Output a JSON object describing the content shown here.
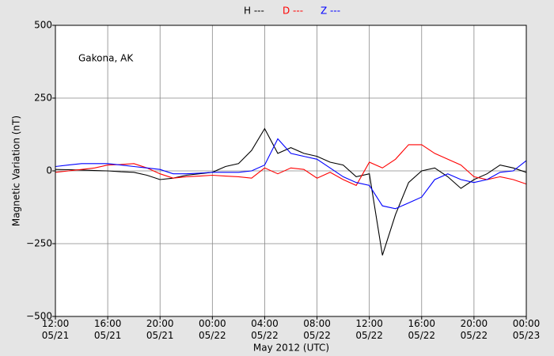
{
  "chart_data": {
    "type": "line",
    "annotation": "Gakona, AK",
    "xlabel": "May 2012 (UTC)",
    "ylabel": "Magnetic Variation (nT)",
    "x": [
      "2012-05-21T12:00",
      "2012-05-21T13:00",
      "2012-05-21T14:00",
      "2012-05-21T15:00",
      "2012-05-21T16:00",
      "2012-05-21T17:00",
      "2012-05-21T18:00",
      "2012-05-21T19:00",
      "2012-05-21T20:00",
      "2012-05-21T21:00",
      "2012-05-21T22:00",
      "2012-05-21T23:00",
      "2012-05-22T00:00",
      "2012-05-22T01:00",
      "2012-05-22T02:00",
      "2012-05-22T03:00",
      "2012-05-22T04:00",
      "2012-05-22T05:00",
      "2012-05-22T06:00",
      "2012-05-22T07:00",
      "2012-05-22T08:00",
      "2012-05-22T09:00",
      "2012-05-22T10:00",
      "2012-05-22T11:00",
      "2012-05-22T12:00",
      "2012-05-22T13:00",
      "2012-05-22T14:00",
      "2012-05-22T15:00",
      "2012-05-22T16:00",
      "2012-05-22T17:00",
      "2012-05-22T18:00",
      "2012-05-22T19:00",
      "2012-05-22T20:00",
      "2012-05-22T21:00",
      "2012-05-22T22:00",
      "2012-05-22T23:00",
      "2012-05-23T00:00"
    ],
    "series": [
      {
        "name": "H ---",
        "color": "#000000",
        "values": [
          5,
          4,
          3,
          1,
          0,
          -3,
          -5,
          -15,
          -30,
          -25,
          -15,
          -10,
          -5,
          15,
          25,
          70,
          145,
          60,
          80,
          60,
          50,
          30,
          20,
          -20,
          -10,
          -290,
          -150,
          -40,
          0,
          10,
          -20,
          -60,
          -30,
          -10,
          20,
          10,
          -5
        ]
      },
      {
        "name": "D ---",
        "color": "#ff0000",
        "values": [
          -5,
          0,
          5,
          10,
          20,
          22,
          25,
          10,
          -10,
          -25,
          -20,
          -18,
          -15,
          -18,
          -20,
          -25,
          10,
          -10,
          10,
          5,
          -25,
          -5,
          -30,
          -50,
          30,
          10,
          40,
          90,
          90,
          60,
          40,
          20,
          -20,
          -30,
          -20,
          -30,
          -45
        ]
      },
      {
        "name": "Z ---",
        "color": "#0000ff",
        "values": [
          15,
          20,
          25,
          25,
          25,
          20,
          15,
          10,
          5,
          -10,
          -10,
          -8,
          -5,
          -5,
          -5,
          0,
          20,
          110,
          60,
          50,
          40,
          10,
          -20,
          -40,
          -50,
          -120,
          -130,
          -110,
          -90,
          -30,
          -10,
          -30,
          -40,
          -30,
          -5,
          0,
          35
        ]
      }
    ],
    "xlim": [
      "2012-05-21T12:00",
      "2012-05-23T00:00"
    ],
    "xticks": [
      {
        "value": "2012-05-21T12:00",
        "label": "12:00\n05/21"
      },
      {
        "value": "2012-05-21T16:00",
        "label": "16:00\n05/21"
      },
      {
        "value": "2012-05-21T20:00",
        "label": "20:00\n05/21"
      },
      {
        "value": "2012-05-22T00:00",
        "label": "00:00\n05/22"
      },
      {
        "value": "2012-05-22T04:00",
        "label": "04:00\n05/22"
      },
      {
        "value": "2012-05-22T08:00",
        "label": "08:00\n05/22"
      },
      {
        "value": "2012-05-22T12:00",
        "label": "12:00\n05/22"
      },
      {
        "value": "2012-05-22T16:00",
        "label": "16:00\n05/22"
      },
      {
        "value": "2012-05-22T20:00",
        "label": "20:00\n05/22"
      },
      {
        "value": "2012-05-23T00:00",
        "label": "00:00\n05/23"
      }
    ],
    "ylim": [
      -500,
      500
    ],
    "yticks": [
      {
        "value": -500,
        "label": "−500"
      },
      {
        "value": -250,
        "label": "−250"
      },
      0,
      250,
      500
    ],
    "grid": true
  }
}
